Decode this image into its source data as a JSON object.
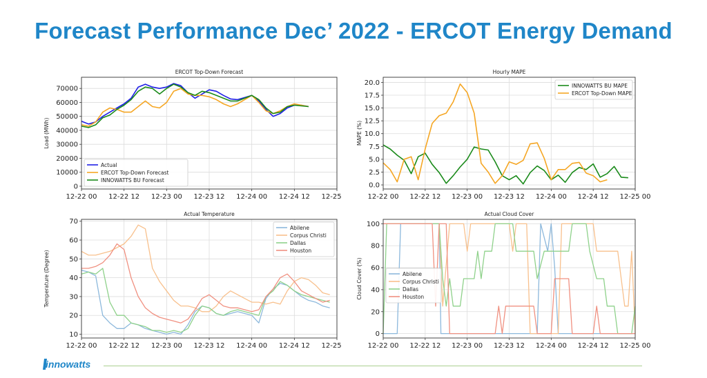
{
  "page": {
    "title": "Forecast Performance Dec’ 2022 - ERCOT Energy Demand"
  },
  "branding": {
    "logo_text": "innowatts"
  },
  "chart_data": [
    {
      "id": "load",
      "type": "line",
      "title": "ERCOT Top-Down Forecast",
      "xlabel": "",
      "ylabel": "Load (MWh)",
      "xlim": [
        0,
        72
      ],
      "ylim": [
        -2000,
        78000
      ],
      "xticks": [
        0,
        12,
        24,
        36,
        48,
        60,
        72
      ],
      "xticklabels": [
        "12-22 00",
        "12-22 12",
        "12-23 00",
        "12-23 12",
        "12-24 00",
        "12-24 12",
        "12-25 00"
      ],
      "yticks": [
        0,
        10000,
        20000,
        30000,
        40000,
        50000,
        60000,
        70000
      ],
      "yticklabels": [
        "0",
        "10000",
        "20000",
        "30000",
        "40000",
        "50000",
        "60000",
        "70000"
      ],
      "grid": true,
      "legend_position": "lower-left",
      "x": [
        0,
        2,
        4,
        6,
        8,
        10,
        12,
        14,
        16,
        18,
        20,
        22,
        24,
        26,
        28,
        30,
        32,
        34,
        36,
        38,
        40,
        42,
        44,
        46,
        48,
        50,
        52,
        54,
        56,
        58,
        60,
        62,
        64,
        66,
        68,
        70
      ],
      "series": [
        {
          "name": "Actual",
          "color": "#1f1fe6",
          "values": [
            46500,
            44500,
            46000,
            50000,
            53000,
            56000,
            59000,
            63000,
            71000,
            73000,
            71000,
            70000,
            71000,
            73500,
            72000,
            67000,
            63000,
            66000,
            69000,
            68000,
            65000,
            62500,
            62000,
            63500,
            65000,
            61000,
            55000,
            50000,
            52000,
            56000,
            58000,
            58000,
            57000,
            null,
            null,
            null
          ]
        },
        {
          "name": "ERCOT Top-Down Forecast",
          "color": "#f5a623",
          "values": [
            44000,
            43000,
            46000,
            53000,
            56000,
            55000,
            53000,
            53000,
            57000,
            61000,
            57000,
            56000,
            60000,
            68000,
            70000,
            66000,
            65000,
            65000,
            64000,
            62000,
            59000,
            57000,
            59000,
            62000,
            65000,
            60000,
            54000,
            52000,
            54000,
            57000,
            59000,
            58000,
            57000,
            null,
            null,
            null
          ]
        },
        {
          "name": "INNOWATTS BU Forecast",
          "color": "#1a8a1a",
          "values": [
            43000,
            42000,
            44000,
            49000,
            51000,
            55000,
            58000,
            62000,
            68000,
            71000,
            70000,
            66000,
            70000,
            73000,
            71000,
            67000,
            65000,
            68000,
            67000,
            65000,
            63000,
            61000,
            61000,
            63000,
            65000,
            62000,
            56000,
            52000,
            53000,
            57000,
            58000,
            57500,
            57000,
            null,
            null,
            null
          ]
        }
      ]
    },
    {
      "id": "mape",
      "type": "line",
      "title": "Hourly MAPE",
      "xlabel": "",
      "ylabel": "MAPE (%)",
      "xlim": [
        0,
        72
      ],
      "ylim": [
        -0.8,
        21
      ],
      "xticks": [
        0,
        12,
        24,
        36,
        48,
        60,
        72
      ],
      "xticklabels": [
        "12-22 00",
        "12-22 12",
        "12-23 00",
        "12-23 12",
        "12-24 00",
        "12-24 12",
        "12-25 00"
      ],
      "yticks": [
        0,
        2.5,
        5,
        7.5,
        10,
        12.5,
        15,
        17.5,
        20
      ],
      "yticklabels": [
        "0.0",
        "2.5",
        "5.0",
        "7.5",
        "10.0",
        "12.5",
        "15.0",
        "17.5",
        "20.0"
      ],
      "grid": true,
      "legend_position": "top-right",
      "x": [
        0,
        2,
        4,
        6,
        8,
        10,
        12,
        14,
        16,
        18,
        20,
        22,
        24,
        26,
        28,
        30,
        32,
        34,
        36,
        38,
        40,
        42,
        44,
        46,
        48,
        50,
        52,
        54,
        56,
        58,
        60,
        62,
        64,
        66,
        68,
        70
      ],
      "series": [
        {
          "name": "INNOWATTS BU MAPE",
          "color": "#1a8a1a",
          "values": [
            7.8,
            7.0,
            5.8,
            4.8,
            2.2,
            5.5,
            6.2,
            4.0,
            2.4,
            0.3,
            1.8,
            3.5,
            5.0,
            7.4,
            7.0,
            6.8,
            4.5,
            1.8,
            1.0,
            1.8,
            0.2,
            2.4,
            3.7,
            2.8,
            1.0,
            1.9,
            0.5,
            2.4,
            3.4,
            3.0,
            4.1,
            1.5,
            2.2,
            3.6,
            1.5,
            1.4
          ]
        },
        {
          "name": "ERCOT Top-Down MAPE",
          "color": "#f5a623",
          "values": [
            4.3,
            3.0,
            0.6,
            5.0,
            5.5,
            1.0,
            7.0,
            12.0,
            13.5,
            14.0,
            16.2,
            19.7,
            18.0,
            14.0,
            4.2,
            2.5,
            0.3,
            1.8,
            4.5,
            4.0,
            4.8,
            8.0,
            8.2,
            5.2,
            1.0,
            3.0,
            3.0,
            4.2,
            4.4,
            2.3,
            1.8,
            0.6,
            1.0,
            null,
            null,
            null
          ]
        }
      ]
    },
    {
      "id": "temp",
      "type": "line",
      "title": "Actual Temperature",
      "xlabel": "",
      "ylabel": "Temperature (Degree)",
      "xlim": [
        0,
        72
      ],
      "ylim": [
        8,
        71
      ],
      "xticks": [
        0,
        12,
        24,
        36,
        48,
        60,
        72
      ],
      "xticklabels": [
        "12-22 00",
        "12-22 12",
        "12-23 00",
        "12-23 12",
        "12-24 00",
        "12-24 12",
        "12-25 00"
      ],
      "yticks": [
        10,
        20,
        30,
        40,
        50,
        60,
        70
      ],
      "yticklabels": [
        "10",
        "20",
        "30",
        "40",
        "50",
        "60",
        "70"
      ],
      "grid": true,
      "legend_position": "top-right",
      "x": [
        0,
        2,
        4,
        6,
        8,
        10,
        12,
        14,
        16,
        18,
        20,
        22,
        24,
        26,
        28,
        30,
        32,
        34,
        36,
        38,
        40,
        42,
        44,
        46,
        48,
        50,
        52,
        54,
        56,
        58,
        60,
        62,
        64,
        66,
        68,
        70
      ],
      "series": [
        {
          "name": "Abilene",
          "color": "#8cb8dc",
          "values": [
            44,
            43,
            41,
            20,
            16,
            13,
            13,
            16,
            15,
            13,
            12,
            11,
            10,
            11,
            10,
            15,
            22,
            25,
            24,
            21,
            20,
            21,
            22,
            21,
            20,
            16,
            29,
            34,
            37,
            36,
            33,
            30,
            28,
            27,
            25,
            24
          ]
        },
        {
          "name": "Corpus Christi",
          "color": "#f8c08c",
          "values": [
            54,
            52,
            52,
            53,
            54,
            56,
            58,
            62,
            68,
            66,
            45,
            38,
            33,
            28,
            25,
            25,
            24,
            22,
            22,
            25,
            30,
            33,
            31,
            29,
            27,
            27,
            26,
            27,
            26,
            33,
            38,
            40,
            39,
            36,
            32,
            31
          ]
        },
        {
          "name": "Dallas",
          "color": "#8ed18a",
          "values": [
            42,
            43,
            42,
            45,
            27,
            20,
            20,
            16,
            15,
            14,
            12,
            12,
            11,
            12,
            11,
            13,
            20,
            25,
            24,
            21,
            20,
            22,
            23,
            22,
            21,
            20,
            30,
            33,
            38,
            36,
            33,
            31,
            30,
            29,
            28,
            27
          ]
        },
        {
          "name": "Houston",
          "color": "#f09080",
          "values": [
            45,
            45,
            46,
            48,
            52,
            58,
            55,
            40,
            30,
            24,
            21,
            19,
            18,
            17,
            16,
            18,
            23,
            29,
            31,
            28,
            25,
            24,
            24,
            23,
            22,
            23,
            30,
            34,
            40,
            42,
            38,
            33,
            31,
            29,
            27,
            28
          ]
        }
      ]
    },
    {
      "id": "cloud",
      "type": "line",
      "title": "Actual Cloud Cover",
      "xlabel": "",
      "ylabel": "Cloud Cover (%)",
      "xlim": [
        0,
        72
      ],
      "ylim": [
        -4,
        104
      ],
      "xticks": [
        0,
        12,
        24,
        36,
        48,
        60,
        72
      ],
      "xticklabels": [
        "12-22 00",
        "12-22 12",
        "12-23 00",
        "12-23 12",
        "12-24 00",
        "12-24 12",
        "12-25 00"
      ],
      "yticks": [
        0,
        20,
        40,
        60,
        80,
        100
      ],
      "yticklabels": [
        "0",
        "20",
        "40",
        "60",
        "80",
        "100"
      ],
      "grid": true,
      "legend_position": "center-left",
      "series": [
        {
          "name": "Abilene",
          "color": "#8cb8dc",
          "points": [
            [
              0,
              0
            ],
            [
              4,
              0
            ],
            [
              5,
              100
            ],
            [
              16,
              100
            ],
            [
              16.5,
              0
            ],
            [
              44,
              0
            ],
            [
              45,
              100
            ],
            [
              47,
              75
            ],
            [
              48,
              100
            ],
            [
              49,
              60
            ],
            [
              50,
              0
            ],
            [
              72,
              0
            ]
          ]
        },
        {
          "name": "Corpus Christi",
          "color": "#f8c08c",
          "points": [
            [
              0,
              100
            ],
            [
              16,
              100
            ],
            [
              17,
              25
            ],
            [
              19,
              100
            ],
            [
              23,
              100
            ],
            [
              24,
              75
            ],
            [
              25,
              100
            ],
            [
              36,
              100
            ],
            [
              37,
              75
            ],
            [
              38,
              100
            ],
            [
              41,
              100
            ],
            [
              42,
              0
            ],
            [
              50,
              0
            ],
            [
              51,
              100
            ],
            [
              60,
              100
            ],
            [
              61,
              75
            ],
            [
              67,
              75
            ],
            [
              69,
              25
            ],
            [
              70,
              25
            ],
            [
              71,
              75
            ],
            [
              72,
              0
            ]
          ]
        },
        {
          "name": "Dallas",
          "color": "#8ed18a",
          "points": [
            [
              0,
              0
            ],
            [
              1,
              100
            ],
            [
              16,
              100
            ],
            [
              17,
              50
            ],
            [
              18,
              25
            ],
            [
              19,
              50
            ],
            [
              20,
              25
            ],
            [
              22,
              25
            ],
            [
              23,
              50
            ],
            [
              26,
              50
            ],
            [
              27,
              75
            ],
            [
              28,
              50
            ],
            [
              29,
              75
            ],
            [
              31,
              75
            ],
            [
              32,
              100
            ],
            [
              37,
              100
            ],
            [
              38,
              75
            ],
            [
              43,
              75
            ],
            [
              44,
              50
            ],
            [
              46,
              75
            ],
            [
              53,
              75
            ],
            [
              54,
              100
            ],
            [
              58,
              100
            ],
            [
              59,
              75
            ],
            [
              61,
              50
            ],
            [
              63,
              50
            ],
            [
              64,
              25
            ],
            [
              66,
              25
            ],
            [
              67,
              0
            ],
            [
              71,
              0
            ],
            [
              72,
              25
            ]
          ]
        },
        {
          "name": "Houston",
          "color": "#f09080",
          "points": [
            [
              0,
              100
            ],
            [
              14,
              100
            ],
            [
              15,
              25
            ],
            [
              16,
              100
            ],
            [
              18,
              100
            ],
            [
              19,
              0
            ],
            [
              32,
              0
            ],
            [
              33,
              25
            ],
            [
              34,
              0
            ],
            [
              35,
              25
            ],
            [
              43,
              25
            ],
            [
              44,
              0
            ],
            [
              48,
              0
            ],
            [
              49,
              50
            ],
            [
              53,
              50
            ],
            [
              54,
              0
            ],
            [
              60,
              0
            ],
            [
              61,
              25
            ],
            [
              62,
              0
            ],
            [
              72,
              0
            ]
          ]
        }
      ]
    }
  ]
}
